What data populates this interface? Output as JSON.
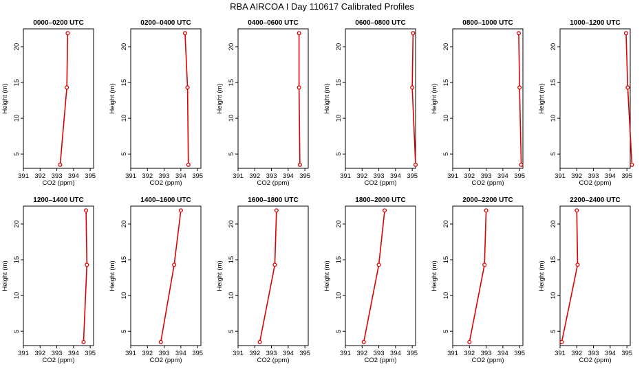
{
  "title": "RBA AIRCOA I  Day 110617  Calibrated Profiles",
  "chart_data": {
    "type": "line",
    "xlabel": "CO2 (ppm)",
    "ylabel": "Height (m)",
    "xlim": [
      391,
      395.2
    ],
    "ylim": [
      3,
      22.5
    ],
    "xticks": [
      391,
      392,
      393,
      394,
      395
    ],
    "yticks": [
      5,
      10,
      15,
      20
    ],
    "grid": false,
    "line_color": "#dd0000",
    "heights": [
      3.5,
      14.3,
      21.9
    ],
    "panels": [
      {
        "title": "0000–0200 UTC",
        "co2": [
          393.2,
          393.6,
          393.65
        ]
      },
      {
        "title": "0200–0400 UTC",
        "co2": [
          394.45,
          394.4,
          394.25
        ]
      },
      {
        "title": "0400–0600 UTC",
        "co2": [
          394.7,
          394.65,
          394.65
        ]
      },
      {
        "title": "0600–0800 UTC",
        "co2": [
          395.2,
          395.0,
          395.05
        ]
      },
      {
        "title": "0800–1000 UTC",
        "co2": [
          395.1,
          395.0,
          394.95
        ]
      },
      {
        "title": "1000–1200 UTC",
        "co2": [
          395.3,
          395.05,
          394.95
        ]
      },
      {
        "title": "1200–1400 UTC",
        "co2": [
          394.6,
          394.8,
          394.75
        ]
      },
      {
        "title": "1400–1600 UTC",
        "co2": [
          392.8,
          393.6,
          394.0
        ]
      },
      {
        "title": "1600–1800 UTC",
        "co2": [
          392.3,
          393.2,
          393.3
        ]
      },
      {
        "title": "1800–2000 UTC",
        "co2": [
          392.1,
          393.0,
          393.35
        ]
      },
      {
        "title": "2000–2200 UTC",
        "co2": [
          392.0,
          392.9,
          393.0
        ]
      },
      {
        "title": "2200–2400 UTC",
        "co2": [
          391.1,
          392.05,
          392.0
        ]
      }
    ]
  }
}
